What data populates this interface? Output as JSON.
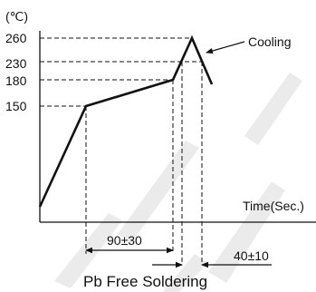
{
  "diagram": {
    "unit_label": "(℃)",
    "y_ticks": [
      {
        "value": 260,
        "label": "260"
      },
      {
        "value": 230,
        "label": "230"
      },
      {
        "value": 180,
        "label": "180"
      },
      {
        "value": 150,
        "label": "150"
      }
    ],
    "x_axis_label": "Time(Sec.)",
    "cooling_label": "Cooling",
    "dim_preheat": "90±30",
    "dim_reflow": "40±10",
    "caption": "Pb Free Soldering",
    "colors": {
      "ink": "#111111",
      "watermark": "#ebebeb",
      "background": "#ffffff"
    }
  }
}
